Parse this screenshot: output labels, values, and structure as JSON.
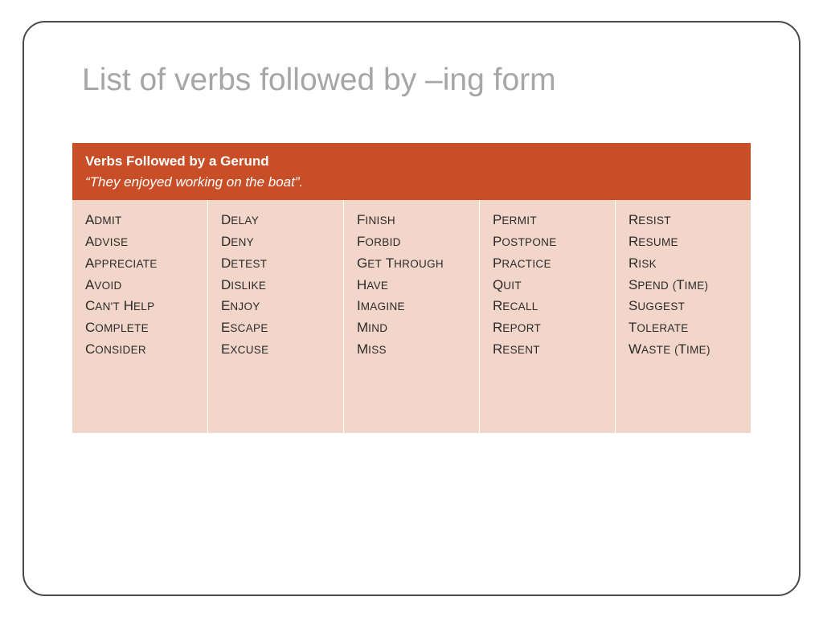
{
  "title": "List of verbs followed by –ing form",
  "header": {
    "line1": "Verbs Followed by a Gerund",
    "line2": "“They enjoyed working on the boat”."
  },
  "colors": {
    "title_color": "#a6a6a6",
    "header_bg": "#c84e27",
    "header_text": "#ffffff",
    "body_bg": "#f3d6ca",
    "body_text": "#2a2a2a",
    "frame_border": "#4a4a4a",
    "col_divider": "#ffffff"
  },
  "typography": {
    "title_fontsize": 39,
    "header_fontsize": 17,
    "verb_fontsize": 16.5,
    "font_family_title": "Segoe UI",
    "font_family_header": "Verdana",
    "font_family_body": "Trebuchet MS"
  },
  "layout": {
    "slide_width": 1024,
    "slide_height": 768,
    "frame_radius": 28,
    "columns": 5
  },
  "table": {
    "type": "table",
    "columns": [
      [
        "Admit",
        "Advise",
        "Appreciate",
        "Avoid",
        "Can't help",
        "Complete",
        "Consider"
      ],
      [
        "Delay",
        "Deny",
        "Detest",
        "Dislike",
        "Enjoy",
        "Escape",
        "Excuse"
      ],
      [
        "Finish",
        "Forbid",
        "Get through",
        "Have",
        "Imagine",
        "Mind",
        "Miss"
      ],
      [
        "Permit",
        "Postpone",
        "Practice",
        "Quit",
        "Recall",
        "Report",
        "Resent"
      ],
      [
        "Resist",
        "Resume",
        "Risk",
        "Spend (time)",
        "Suggest",
        "Tolerate",
        "Waste (time)"
      ]
    ]
  }
}
